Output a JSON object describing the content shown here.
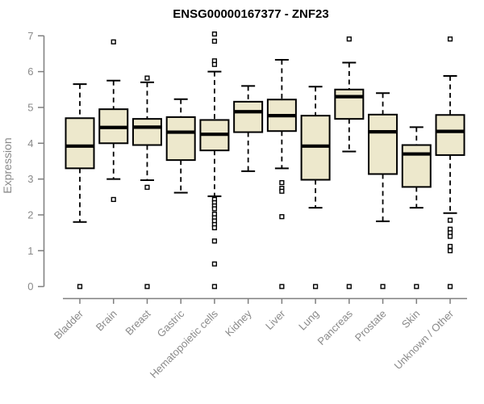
{
  "title": "ENSG00000167377 - ZNF23",
  "y_axis": {
    "label": "Expression",
    "min": 0,
    "max": 7,
    "ticks": [
      0,
      1,
      2,
      3,
      4,
      5,
      6,
      7
    ]
  },
  "colors": {
    "box_fill": "#EDE8CC",
    "box_border": "#000000",
    "median": "#000000",
    "whisker": "#000000",
    "outlier_stroke": "#000000",
    "outlier_fill": "#FFFFFF",
    "axis_line": "#7F7F7F",
    "tick_text": "#8A8A8A",
    "title_text": "#000000",
    "background": "#FFFFFF"
  },
  "chart_data": {
    "type": "boxplot",
    "title": "ENSG00000167377 - ZNF23",
    "xlabel": "",
    "ylabel": "Expression",
    "ylim": [
      0,
      7
    ],
    "grid": false,
    "legend": "none",
    "categories": [
      "Bladder",
      "Brain",
      "Breast",
      "Gastric",
      "Hematopoietic cells",
      "Kidney",
      "Liver",
      "Lung",
      "Pancreas",
      "Prostate",
      "Skin",
      "Unknown / Other"
    ],
    "series": [
      {
        "name": "Bladder",
        "whisker_low": 1.8,
        "q1": 3.3,
        "median": 3.92,
        "q3": 4.7,
        "whisker_high": 5.65,
        "outliers": [
          0
        ]
      },
      {
        "name": "Brain",
        "whisker_low": 3.0,
        "q1": 4.0,
        "median": 4.44,
        "q3": 4.95,
        "whisker_high": 5.75,
        "outliers": [
          6.83,
          2.43
        ]
      },
      {
        "name": "Breast",
        "whisker_low": 2.97,
        "q1": 3.95,
        "median": 4.45,
        "q3": 4.68,
        "whisker_high": 5.7,
        "outliers": [
          5.82,
          2.77,
          0
        ]
      },
      {
        "name": "Gastric",
        "whisker_low": 2.62,
        "q1": 3.53,
        "median": 4.31,
        "q3": 4.73,
        "whisker_high": 5.23,
        "outliers": []
      },
      {
        "name": "Hematopoietic cells",
        "whisker_low": 2.52,
        "q1": 3.8,
        "median": 4.25,
        "q3": 4.65,
        "whisker_high": 6.0,
        "outliers": [
          7.05,
          6.85,
          6.3,
          6.2,
          2.43,
          2.34,
          2.25,
          2.17,
          2.02,
          1.92,
          1.83,
          1.73,
          1.64,
          1.27,
          0.63,
          0
        ]
      },
      {
        "name": "Kidney",
        "whisker_low": 3.22,
        "q1": 4.31,
        "median": 4.88,
        "q3": 5.16,
        "whisker_high": 5.6,
        "outliers": []
      },
      {
        "name": "Liver",
        "whisker_low": 3.3,
        "q1": 4.34,
        "median": 4.77,
        "q3": 5.22,
        "whisker_high": 6.33,
        "outliers": [
          2.9,
          2.74,
          2.66,
          1.95,
          0
        ]
      },
      {
        "name": "Lung",
        "whisker_low": 2.2,
        "q1": 2.98,
        "median": 3.92,
        "q3": 4.77,
        "whisker_high": 5.58,
        "outliers": [
          0
        ]
      },
      {
        "name": "Pancreas",
        "whisker_low": 3.77,
        "q1": 4.68,
        "median": 5.3,
        "q3": 5.5,
        "whisker_high": 6.25,
        "outliers": [
          6.91,
          0
        ]
      },
      {
        "name": "Prostate",
        "whisker_low": 1.82,
        "q1": 3.14,
        "median": 4.32,
        "q3": 4.8,
        "whisker_high": 5.4,
        "outliers": [
          0
        ]
      },
      {
        "name": "Skin",
        "whisker_low": 2.2,
        "q1": 2.78,
        "median": 3.7,
        "q3": 3.95,
        "whisker_high": 4.45,
        "outliers": [
          0
        ]
      },
      {
        "name": "Unknown / Other",
        "whisker_low": 2.05,
        "q1": 3.67,
        "median": 4.33,
        "q3": 4.79,
        "whisker_high": 5.88,
        "outliers": [
          6.91,
          1.85,
          1.6,
          1.5,
          1.4,
          1.12,
          1.0,
          0
        ]
      }
    ]
  }
}
